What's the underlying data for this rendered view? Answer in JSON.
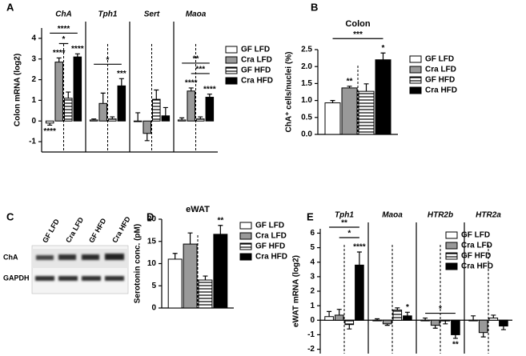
{
  "panel_labels": [
    "A",
    "B",
    "C",
    "D",
    "E"
  ],
  "blot": {
    "lanes": [
      "GF LFD",
      "Cra LFD",
      "GF HFD",
      "Cra HFD"
    ],
    "bands": [
      "ChA",
      "GAPDH"
    ]
  },
  "chart_data": [
    {
      "type": "bar",
      "y_label": "Colon mRNA (log2)",
      "categories": [
        "ChA",
        "Tph1",
        "Sert",
        "Maoa"
      ],
      "series": [
        {
          "name": "GF LFD",
          "color": "#ffffff",
          "values": [
            -0.1,
            0.05,
            0.0,
            0.05
          ],
          "errors": [
            0.1,
            0.05,
            0.4,
            0.1
          ]
        },
        {
          "name": "Cra LFD",
          "color": "#999999",
          "values": [
            2.85,
            0.85,
            -0.6,
            1.45
          ],
          "errors": [
            0.2,
            0.5,
            0.35,
            0.15
          ]
        },
        {
          "name": "GF HFD",
          "color": "#ffffff",
          "hatch": true,
          "values": [
            1.1,
            0.1,
            1.05,
            0.1
          ],
          "errors": [
            0.3,
            0.1,
            0.45,
            0.1
          ]
        },
        {
          "name": "Cra HFD",
          "color": "#000000",
          "values": [
            3.1,
            1.7,
            0.25,
            1.15
          ],
          "errors": [
            0.15,
            0.35,
            0.4,
            0.15
          ]
        }
      ],
      "ylim": [
        -1.5,
        4.5
      ],
      "yticks": [
        -1,
        0,
        1,
        2,
        3,
        4
      ],
      "group_separators": true,
      "annotations": [
        {
          "text": "****",
          "category": 0,
          "series": 0
        },
        {
          "text": "****",
          "category": 0,
          "series": 1
        },
        {
          "text": "****",
          "category": 0,
          "series": 3
        },
        {
          "text": "***",
          "category": 1,
          "series": 3
        },
        {
          "text": "****",
          "category": 3,
          "series": 1
        },
        {
          "text": "****",
          "category": 3,
          "series": 3
        }
      ],
      "brackets": [
        {
          "text": "*",
          "category": 0,
          "series": [
            1,
            2
          ]
        },
        {
          "text": "****",
          "category": 0,
          "series": [
            0,
            3
          ]
        },
        {
          "text": "*",
          "category": 1,
          "series": [
            0,
            3
          ]
        },
        {
          "text": "***",
          "category": 3,
          "series": [
            1,
            3
          ]
        },
        {
          "text": "**",
          "category": 3,
          "series": [
            0,
            3
          ]
        }
      ]
    },
    {
      "type": "bar",
      "title": "Colon",
      "y_label": "ChA⁺ cells/nuclei (%)",
      "series": [
        {
          "name": "GF LFD",
          "color": "#ffffff",
          "values": [
            0.93
          ],
          "errors": [
            0.07
          ]
        },
        {
          "name": "Cra LFD",
          "color": "#999999",
          "values": [
            1.37
          ],
          "errors": [
            0.05
          ]
        },
        {
          "name": "GF HFD",
          "color": "#ffffff",
          "hatch": true,
          "values": [
            1.27
          ],
          "errors": [
            0.22
          ]
        },
        {
          "name": "Cra HFD",
          "color": "#000000",
          "values": [
            2.2
          ],
          "errors": [
            0.2
          ]
        }
      ],
      "ylim": [
        0,
        2.5
      ],
      "yticks": [
        {
          "value": 0,
          "label": "0.0"
        },
        {
          "value": 0.5,
          "label": "0.5"
        },
        {
          "value": 1,
          "label": "1.0"
        },
        {
          "value": 1.5,
          "label": "1.5"
        },
        {
          "value": 2,
          "label": "2.0"
        },
        {
          "value": 2.5,
          "label": "2.5"
        }
      ],
      "annotations": [
        {
          "text": "**",
          "category": 0,
          "series": 1
        },
        {
          "text": "*",
          "category": 0,
          "series": 3
        }
      ],
      "brackets": [
        {
          "text": "***",
          "category": 0,
          "series": [
            0,
            3
          ]
        }
      ]
    },
    {
      "type": "bar",
      "title": "eWAT",
      "y_label": "Serotonin conc. (pM)",
      "series": [
        {
          "name": "GF LFD",
          "color": "#ffffff",
          "values": [
            11
          ],
          "errors": [
            1.3
          ]
        },
        {
          "name": "Cra LFD",
          "color": "#999999",
          "values": [
            14.4
          ],
          "errors": [
            2.5
          ]
        },
        {
          "name": "GF HFD",
          "color": "#ffffff",
          "hatch": true,
          "values": [
            6.3
          ],
          "errors": [
            0.9
          ]
        },
        {
          "name": "Cra HFD",
          "color": "#000000",
          "values": [
            16.6
          ],
          "errors": [
            2
          ]
        }
      ],
      "ylim": [
        0,
        20
      ],
      "yticks": [
        0,
        5,
        10,
        15,
        20
      ],
      "annotations": [
        {
          "text": "**",
          "category": 0,
          "series": 3
        }
      ]
    },
    {
      "type": "bar",
      "y_label": "eWAT mRNA (log2)",
      "categories": [
        "Tph1",
        "Maoa",
        "HTR2b",
        "HTR2a"
      ],
      "series": [
        {
          "name": "GF LFD",
          "color": "#ffffff",
          "values": [
            0.25,
            0,
            0,
            0
          ],
          "errors": [
            0.35,
            0.1,
            0.15,
            0.3
          ]
        },
        {
          "name": "Cra LFD",
          "color": "#999999",
          "values": [
            0.35,
            -0.25,
            -0.35,
            -0.85
          ],
          "errors": [
            0.4,
            0.1,
            0.2,
            0.3
          ]
        },
        {
          "name": "GF HFD",
          "color": "#ffffff",
          "hatch": true,
          "values": [
            -0.3,
            0.7,
            -0.05,
            0.15
          ],
          "errors": [
            0.3,
            0.15,
            0.2,
            0.2
          ]
        },
        {
          "name": "Cra HFD",
          "color": "#000000",
          "values": [
            3.8,
            0.3,
            -1.0,
            -0.4
          ],
          "errors": [
            0.9,
            0.25,
            0.25,
            0.25
          ]
        }
      ],
      "ylim": [
        -2.3,
        6.3
      ],
      "yticks": [
        -2,
        -1,
        0,
        1,
        2,
        3,
        4,
        5,
        6
      ],
      "group_separators": true,
      "zero_axis": true,
      "annotations": [
        {
          "text": "****",
          "category": 0,
          "series": 3
        },
        {
          "text": "*",
          "category": 1,
          "series": 3
        },
        {
          "text": "**",
          "category": 2,
          "series": 3
        }
      ],
      "brackets": [
        {
          "text": "*",
          "category": 0,
          "series": [
            1,
            3
          ]
        },
        {
          "text": "**",
          "category": 0,
          "series": [
            0,
            3
          ]
        },
        {
          "text": "*",
          "category": 2,
          "series": [
            0,
            3
          ]
        }
      ]
    }
  ]
}
